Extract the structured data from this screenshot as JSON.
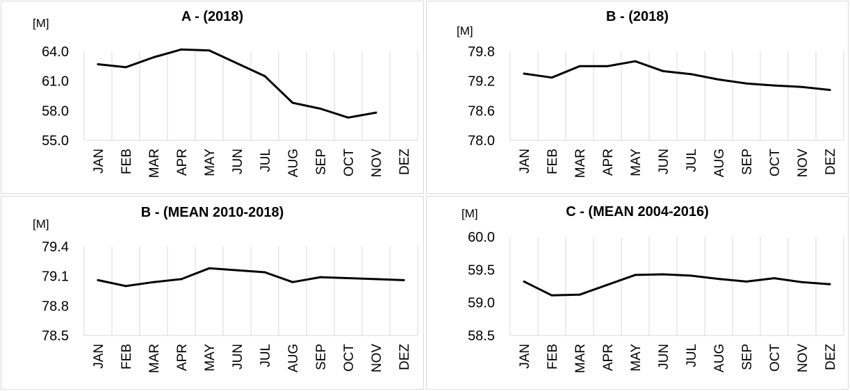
{
  "chart_data": [
    {
      "type": "line",
      "title": "A - (2018)",
      "ylabel": "[M]",
      "categories": [
        "JAN",
        "FEB",
        "MAR",
        "APR",
        "MAY",
        "JUN",
        "JUL",
        "AUG",
        "SEP",
        "OCT",
        "NOV",
        "DEZ"
      ],
      "yticks": [
        "55.0",
        "58.0",
        "61.0",
        "64.0"
      ],
      "ylim": [
        55.0,
        64.0
      ],
      "grid": "vertical",
      "series": [
        {
          "values": [
            62.7,
            62.4,
            63.4,
            64.2,
            64.1,
            62.8,
            61.5,
            58.8,
            58.2,
            57.3,
            57.8,
            null
          ]
        }
      ]
    },
    {
      "type": "line",
      "title": "B - (2018)",
      "ylabel": "[M]",
      "categories": [
        "JAN",
        "FEB",
        "MAR",
        "APR",
        "MAY",
        "JUN",
        "JUL",
        "AUG",
        "SEP",
        "OCT",
        "NOV",
        "DEZ"
      ],
      "yticks": [
        "78.0",
        "78.6",
        "79.2",
        "79.8"
      ],
      "ylim": [
        78.0,
        79.8
      ],
      "grid": "vertical",
      "series": [
        {
          "values": [
            79.35,
            79.27,
            79.5,
            79.5,
            79.6,
            79.4,
            79.34,
            79.23,
            79.15,
            79.11,
            79.08,
            79.02
          ]
        }
      ]
    },
    {
      "type": "line",
      "title": "B - (MEAN 2010-2018)",
      "ylabel": "[M]",
      "categories": [
        "JAN",
        "FEB",
        "MAR",
        "APR",
        "MAY",
        "JUN",
        "JUL",
        "AUG",
        "SEP",
        "OCT",
        "NOV",
        "DEZ"
      ],
      "yticks": [
        "78.5",
        "78.8",
        "79.1",
        "79.4"
      ],
      "ylim": [
        78.5,
        79.4
      ],
      "grid": "vertical",
      "series": [
        {
          "values": [
            79.06,
            79.0,
            79.04,
            79.07,
            79.18,
            79.16,
            79.14,
            79.04,
            79.09,
            79.08,
            79.07,
            79.06
          ]
        }
      ]
    },
    {
      "type": "line",
      "title": "C - (MEAN 2004-2016)",
      "ylabel": "[M]",
      "categories": [
        "JAN",
        "FEB",
        "MAR",
        "APR",
        "MAY",
        "JUN",
        "JUL",
        "AUG",
        "SEP",
        "OCT",
        "NOV",
        "DEZ"
      ],
      "yticks": [
        "58.5",
        "59.0",
        "59.5",
        "60.0"
      ],
      "ylim": [
        58.5,
        60.0
      ],
      "grid": "vertical",
      "series": [
        {
          "values": [
            59.32,
            59.11,
            59.12,
            59.27,
            59.42,
            59.43,
            59.41,
            59.36,
            59.32,
            59.37,
            59.31,
            59.28
          ]
        }
      ]
    }
  ],
  "colors": {
    "line": "#000000",
    "grid": "#d9d9d9",
    "text": "#000000"
  }
}
